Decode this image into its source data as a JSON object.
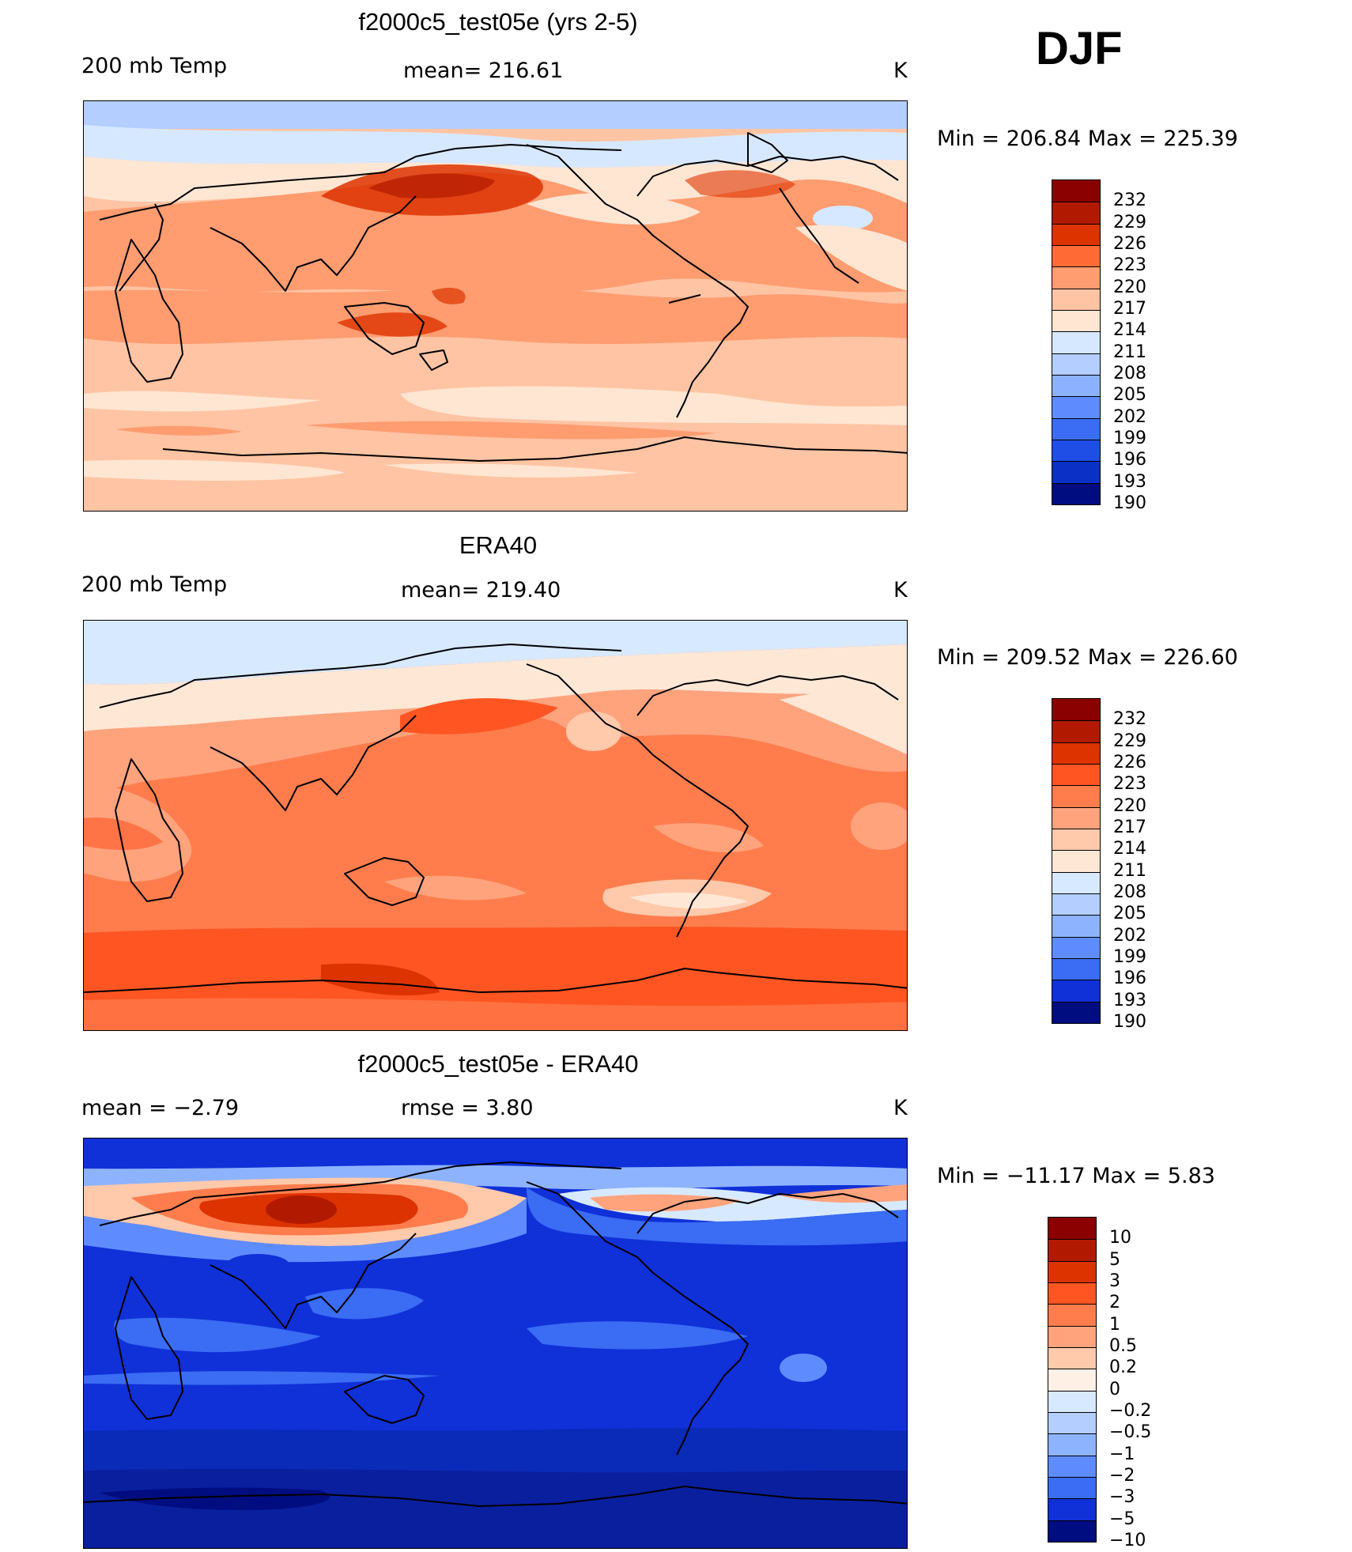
{
  "season": "DJF",
  "panels": [
    {
      "id": "model",
      "title": "f2000c5_test05e (yrs 2-5)",
      "left_label": "200 mb Temp",
      "center_label": "mean= 216.61",
      "units": "K",
      "minmax": "Min = 206.84 Max = 225.39"
    },
    {
      "id": "obs",
      "title": "ERA40",
      "left_label": "200 mb Temp",
      "center_label": "mean= 219.40",
      "units": "K",
      "minmax": "Min = 209.52 Max = 226.60"
    },
    {
      "id": "diff",
      "title": "f2000c5_test05e - ERA40",
      "left_label": "mean = −2.79",
      "center_label": "rmse = 3.80",
      "units": "K",
      "minmax": "Min = −11.17 Max = 5.83"
    }
  ],
  "chart_data": [
    {
      "type": "heatmap",
      "title": "f2000c5_test05e (yrs 2-5)",
      "variable": "200 mb Temp",
      "units": "K",
      "mean": 216.61,
      "min": 206.84,
      "max": 225.39,
      "colorbar_levels": [
        "232",
        "229",
        "226",
        "223",
        "220",
        "217",
        "214",
        "211",
        "208",
        "205",
        "202",
        "199",
        "196",
        "193",
        "190"
      ],
      "colorbar_colors": [
        "#8b0000",
        "#b21a00",
        "#dd3300",
        "#ff6a35",
        "#ff9c70",
        "#ffc4a3",
        "#ffe6d3",
        "#d6e8ff",
        "#b3ceff",
        "#8cb2ff",
        "#5e8cff",
        "#3a6cf4",
        "#1e4ee6",
        "#0a30c6",
        "#000d80"
      ]
    },
    {
      "type": "heatmap",
      "title": "ERA40",
      "variable": "200 mb Temp",
      "units": "K",
      "mean": 219.4,
      "min": 209.52,
      "max": 226.6,
      "colorbar_levels": [
        "232",
        "229",
        "226",
        "223",
        "220",
        "217",
        "214",
        "211",
        "208",
        "205",
        "202",
        "199",
        "196",
        "193",
        "190"
      ],
      "colorbar_colors": [
        "#8b0000",
        "#b21a00",
        "#dd3300",
        "#ff5522",
        "#ff7d4d",
        "#ffa37d",
        "#ffc9ab",
        "#ffe7d6",
        "#d7e9ff",
        "#b4cfff",
        "#8db3ff",
        "#5e8cff",
        "#3a6cf4",
        "#1030d8",
        "#000d80"
      ]
    },
    {
      "type": "heatmap",
      "title": "f2000c5_test05e - ERA40",
      "units": "K",
      "mean": -2.79,
      "rmse": 3.8,
      "min": -11.17,
      "max": 5.83,
      "colorbar_levels": [
        "10",
        "5",
        "3",
        "2",
        "1",
        "0.5",
        "0.2",
        "0",
        "−0.2",
        "−0.5",
        "−1",
        "−2",
        "−3",
        "−5",
        "−10"
      ],
      "colorbar_colors": [
        "#8b0000",
        "#b21a00",
        "#dd3300",
        "#ff5522",
        "#ff7d4d",
        "#ffa37d",
        "#ffc9ab",
        "#fff0e6",
        "#d7e9ff",
        "#b4cfff",
        "#8db3ff",
        "#5e8cff",
        "#3a6cf4",
        "#1030d8",
        "#000d80"
      ]
    }
  ]
}
